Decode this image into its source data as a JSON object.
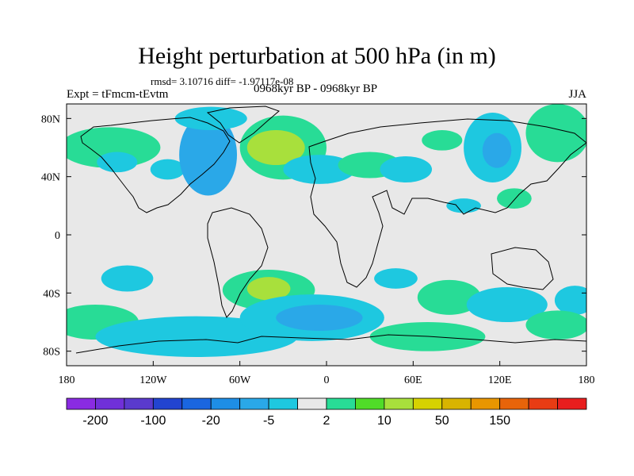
{
  "chart_data": {
    "type": "heatmap",
    "title": "Height perturbation at 500 hPa (in m)",
    "rmsd_text": "rmsd= 3.10716 diff= -1.97117e-08",
    "experiment": "Expt = tFmcm-tEvtm",
    "period": "0968kyr BP - 0968kyr BP",
    "season": "JJA",
    "x_ticks": [
      {
        "value": -180,
        "label": "180"
      },
      {
        "value": -120,
        "label": "120W"
      },
      {
        "value": -60,
        "label": "60W"
      },
      {
        "value": 0,
        "label": "0"
      },
      {
        "value": 60,
        "label": "60E"
      },
      {
        "value": 120,
        "label": "120E"
      },
      {
        "value": 180,
        "label": "180"
      }
    ],
    "y_ticks": [
      {
        "value": 80,
        "label": "80N"
      },
      {
        "value": 40,
        "label": "40N"
      },
      {
        "value": 0,
        "label": "0"
      },
      {
        "value": -40,
        "label": "40S"
      },
      {
        "value": -80,
        "label": "80S"
      }
    ],
    "xlim": [
      -180,
      180
    ],
    "ylim": [
      -90,
      90
    ],
    "colorbar": {
      "colors": [
        "#8a2be2",
        "#7030d8",
        "#5a3acd",
        "#2244d0",
        "#1a66e0",
        "#1e8ee6",
        "#2aa8e8",
        "#1ec8e0",
        "#e8e8e8",
        "#28dc96",
        "#50dc28",
        "#a8e03c",
        "#d6d200",
        "#d8b400",
        "#e89600",
        "#e8640a",
        "#e83c14",
        "#e81e1e"
      ],
      "labels": [
        {
          "boundary": 1,
          "text": "-200"
        },
        {
          "boundary": 3,
          "text": "-100"
        },
        {
          "boundary": 5,
          "text": "-20"
        },
        {
          "boundary": 7,
          "text": "-5"
        },
        {
          "boundary": 9,
          "text": "2"
        },
        {
          "boundary": 11,
          "text": "10"
        },
        {
          "boundary": 13,
          "text": "50"
        },
        {
          "boundary": 15,
          "text": "150"
        }
      ]
    },
    "anomalies": [
      {
        "lon": -150,
        "lat": 60,
        "rlon": 35,
        "rlat": 14,
        "level": 9
      },
      {
        "lon": -145,
        "lat": 50,
        "rlon": 14,
        "rlat": 7,
        "level": 7
      },
      {
        "lon": -110,
        "lat": 45,
        "rlon": 12,
        "rlat": 7,
        "level": 7
      },
      {
        "lon": -82,
        "lat": 55,
        "rlon": 20,
        "rlat": 28,
        "level": 6
      },
      {
        "lon": -80,
        "lat": 80,
        "rlon": 25,
        "rlat": 8,
        "level": 7
      },
      {
        "lon": -30,
        "lat": 60,
        "rlon": 30,
        "rlat": 22,
        "level": 9
      },
      {
        "lon": -35,
        "lat": 60,
        "rlon": 20,
        "rlat": 12,
        "level": 11
      },
      {
        "lon": -5,
        "lat": 45,
        "rlon": 25,
        "rlat": 10,
        "level": 7
      },
      {
        "lon": 30,
        "lat": 48,
        "rlon": 22,
        "rlat": 9,
        "level": 9
      },
      {
        "lon": 55,
        "lat": 45,
        "rlon": 18,
        "rlat": 9,
        "level": 7
      },
      {
        "lon": 80,
        "lat": 65,
        "rlon": 14,
        "rlat": 7,
        "level": 9
      },
      {
        "lon": 115,
        "lat": 60,
        "rlon": 20,
        "rlat": 24,
        "level": 7
      },
      {
        "lon": 118,
        "lat": 58,
        "rlon": 10,
        "rlat": 12,
        "level": 6
      },
      {
        "lon": 160,
        "lat": 70,
        "rlon": 22,
        "rlat": 20,
        "level": 9
      },
      {
        "lon": 130,
        "lat": 25,
        "rlon": 12,
        "rlat": 7,
        "level": 9
      },
      {
        "lon": 95,
        "lat": 20,
        "rlon": 12,
        "rlat": 5,
        "level": 7
      },
      {
        "lon": -138,
        "lat": -30,
        "rlon": 18,
        "rlat": 9,
        "level": 7
      },
      {
        "lon": -40,
        "lat": -38,
        "rlon": 32,
        "rlat": 14,
        "level": 9
      },
      {
        "lon": -40,
        "lat": -37,
        "rlon": 15,
        "rlat": 8,
        "level": 11
      },
      {
        "lon": 48,
        "lat": -30,
        "rlon": 15,
        "rlat": 7,
        "level": 7
      },
      {
        "lon": 85,
        "lat": -43,
        "rlon": 22,
        "rlat": 12,
        "level": 9
      },
      {
        "lon": 125,
        "lat": -48,
        "rlon": 28,
        "rlat": 12,
        "level": 7
      },
      {
        "lon": 172,
        "lat": -45,
        "rlon": 14,
        "rlat": 10,
        "level": 7
      },
      {
        "lon": -160,
        "lat": -60,
        "rlon": 30,
        "rlat": 12,
        "level": 9
      },
      {
        "lon": -90,
        "lat": -70,
        "rlon": 70,
        "rlat": 14,
        "level": 7
      },
      {
        "lon": -10,
        "lat": -57,
        "rlon": 50,
        "rlat": 16,
        "level": 7
      },
      {
        "lon": -5,
        "lat": -57,
        "rlon": 30,
        "rlat": 9,
        "level": 6
      },
      {
        "lon": 70,
        "lat": -70,
        "rlon": 40,
        "rlat": 10,
        "level": 9
      },
      {
        "lon": 160,
        "lat": -62,
        "rlon": 22,
        "rlat": 10,
        "level": 9
      }
    ]
  }
}
